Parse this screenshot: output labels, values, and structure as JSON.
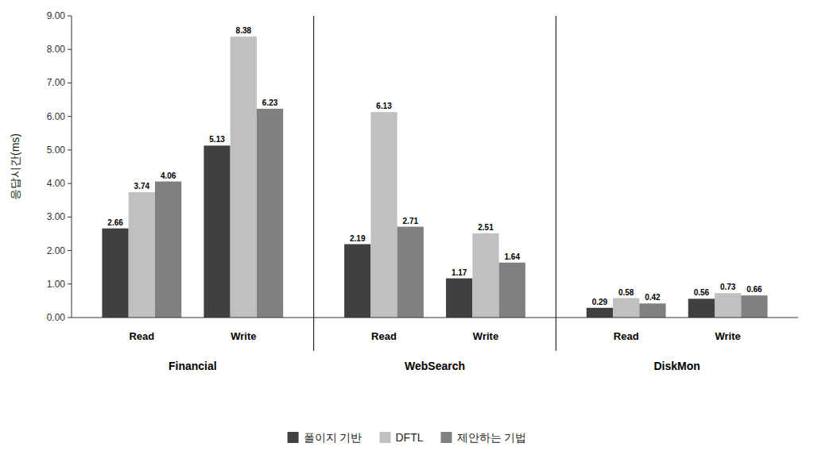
{
  "chart_data": {
    "type": "bar",
    "y_label": "응답시간(ms)",
    "categories": [
      "Read",
      "Write",
      "Read",
      "Write",
      "Read",
      "Write"
    ],
    "category_groups": [
      "Financial",
      "WebSearch",
      "DiskMon"
    ],
    "series": [
      {
        "name": "폴이지 기반",
        "color": "#404040",
        "values": [
          2.66,
          5.13,
          2.19,
          1.17,
          0.29,
          0.56
        ]
      },
      {
        "name": "DFTL",
        "color": "#c0c0c0",
        "values": [
          3.74,
          8.38,
          6.13,
          2.51,
          0.58,
          0.73
        ]
      },
      {
        "name": "제안하는 기법",
        "color": "#808080",
        "values": [
          4.06,
          6.23,
          2.71,
          1.64,
          0.42,
          0.66
        ]
      }
    ],
    "ylim": [
      0,
      9.0
    ],
    "yticks": [
      {
        "value": 0,
        "label": "0.00"
      },
      {
        "value": 1,
        "label": "1.00"
      },
      {
        "value": 2,
        "label": "2.00"
      },
      {
        "value": 3,
        "label": "3.00"
      },
      {
        "value": 4,
        "label": "4.00"
      },
      {
        "value": 5,
        "label": "5.00"
      },
      {
        "value": 6,
        "label": "6.00"
      },
      {
        "value": 7,
        "label": "7.00"
      },
      {
        "value": 8,
        "label": "8.00"
      },
      {
        "value": 9,
        "label": "9.00"
      }
    ],
    "data_labels": true,
    "grid": false,
    "legend": "bottom"
  }
}
